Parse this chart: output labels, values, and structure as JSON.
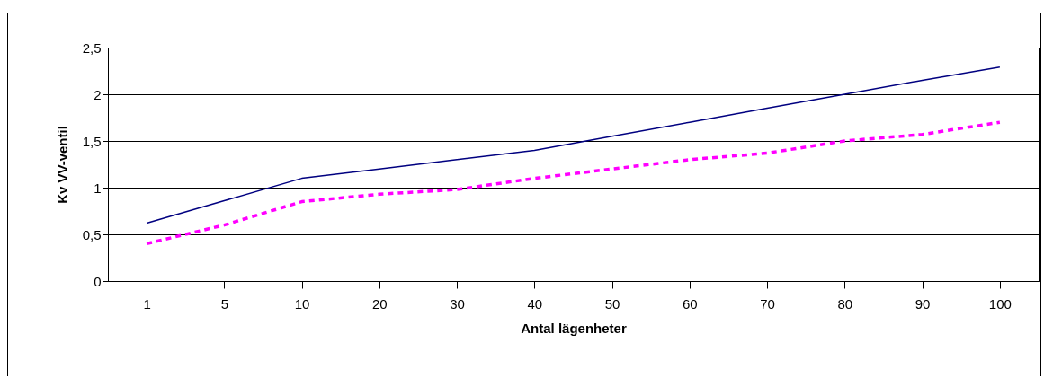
{
  "chart_data": {
    "type": "line",
    "xlabel": "Antal lägenheter",
    "ylabel": "Kv VV-ventil",
    "categories": [
      "1",
      "5",
      "10",
      "20",
      "30",
      "40",
      "50",
      "60",
      "70",
      "80",
      "90",
      "100"
    ],
    "series": [
      {
        "color": "#000080",
        "line_style": "solid",
        "values": [
          0.62,
          0.86,
          1.1,
          1.2,
          1.3,
          1.4,
          1.55,
          1.7,
          1.85,
          2.0,
          2.15,
          2.29
        ]
      },
      {
        "color": "#ff00ff",
        "line_style": "dashed",
        "values": [
          0.4,
          0.6,
          0.85,
          0.93,
          0.98,
          1.1,
          1.2,
          1.3,
          1.37,
          1.5,
          1.57,
          1.7
        ]
      }
    ],
    "ylim": [
      0,
      2.5
    ],
    "yticks": [
      0,
      {
        "value": 0.5,
        "label": "0,5"
      },
      1,
      {
        "value": 1.5,
        "label": "1,5"
      },
      2,
      {
        "value": 2.5,
        "label": "2,5"
      }
    ],
    "grid": "y",
    "marker": "none"
  }
}
